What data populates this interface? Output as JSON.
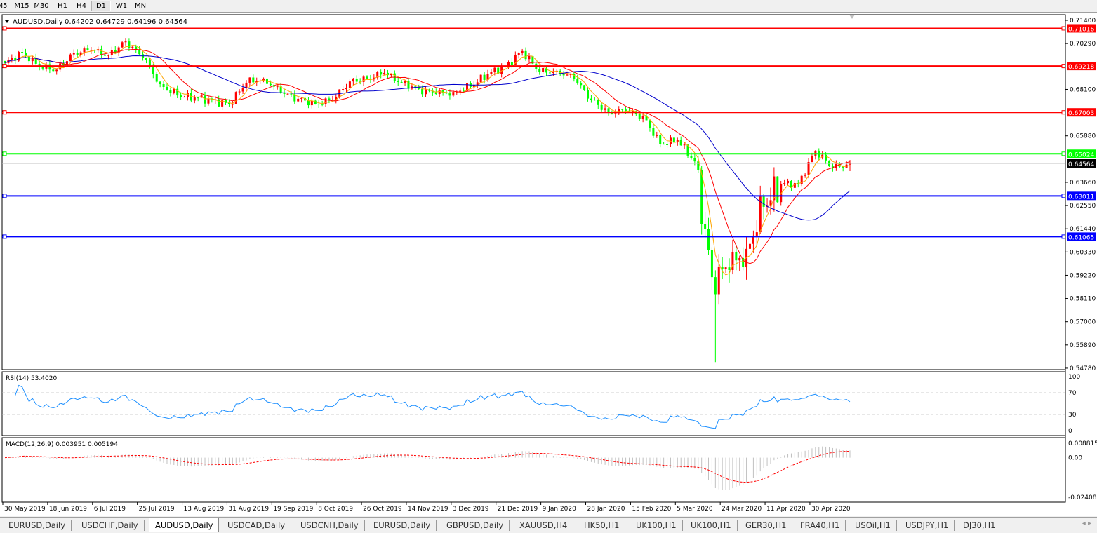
{
  "toolbar": {
    "timeframes": [
      "M5",
      "M15",
      "M30",
      "H1",
      "H4",
      "D1",
      "W1",
      "MN"
    ],
    "active_timeframe": "D1"
  },
  "chart": {
    "header": "AUDUSD,Daily",
    "ohlc": "0.64202 0.64729 0.64196 0.64564",
    "rsi_header": "RSI(14) 53.4020",
    "macd_header": "MACD(12,26,9) 0.003951 0.005194"
  },
  "chart_data": {
    "type": "candlestick",
    "symbol": "AUDUSD",
    "timeframe": "Daily",
    "last": {
      "open": 0.64202,
      "high": 0.64729,
      "low": 0.64196,
      "close": 0.64564
    },
    "weekly_closes_approx": [
      0.6936,
      0.6986,
      0.6919,
      0.6904,
      0.6985,
      0.6998,
      0.6975,
      0.7039,
      0.6962,
      0.6835,
      0.6781,
      0.6771,
      0.6758,
      0.6738,
      0.6842,
      0.6862,
      0.6795,
      0.6765,
      0.6741,
      0.6761,
      0.6848,
      0.6862,
      0.6889,
      0.6842,
      0.6812,
      0.6788,
      0.6798,
      0.6822,
      0.6885,
      0.6919,
      0.6993,
      0.6892,
      0.6899,
      0.6862,
      0.6761,
      0.6701,
      0.6708,
      0.6681,
      0.655,
      0.6567,
      0.6466,
      0.5913,
      0.5947,
      0.6048,
      0.6249,
      0.6359,
      0.6359,
      0.6517,
      0.6433,
      0.64564
    ],
    "period_low_approx": 0.5507,
    "moving_averages": [
      {
        "color": "#ffa500"
      },
      {
        "color": "#ff0000"
      },
      {
        "color": "#0000cc"
      }
    ],
    "candle_colors": {
      "up": "#ff0000",
      "down": "#00ff00"
    },
    "price_axis_ticks": [
      "0.71400",
      "0.70290",
      "0.68100",
      "0.65880",
      "0.63660",
      "0.62550",
      "0.61440",
      "0.60330",
      "0.59220",
      "0.58110",
      "0.57000",
      "0.55890",
      "0.54780"
    ],
    "ylim": [
      0.5478,
      0.714
    ],
    "horizontal_lines": [
      {
        "price": "0.71016",
        "color": "#ff0000"
      },
      {
        "price": "0.69218",
        "color": "#ff0000"
      },
      {
        "price": "0.67003",
        "color": "#ff0000"
      },
      {
        "price": "0.65024",
        "color": "#00ff00"
      },
      {
        "price": "0.63011",
        "color": "#0000ff"
      },
      {
        "price": "0.61065",
        "color": "#0000ff"
      }
    ],
    "current_price": {
      "price": "0.64564",
      "color": "#000000"
    },
    "date_ticks": [
      "30 May 2019",
      "18 Jun 2019",
      "6 Jul 2019",
      "25 Jul 2019",
      "13 Aug 2019",
      "31 Aug 2019",
      "19 Sep 2019",
      "8 Oct 2019",
      "26 Oct 2019",
      "14 Nov 2019",
      "3 Dec 2019",
      "21 Dec 2019",
      "9 Jan 2020",
      "28 Jan 2020",
      "15 Feb 2020",
      "5 Mar 2020",
      "24 Mar 2020",
      "11 Apr 2020",
      "30 Apr 2020"
    ],
    "rsi": {
      "period": 14,
      "value": 53.402,
      "levels": [
        "100",
        "70",
        "30",
        "0"
      ],
      "color": "#1e90ff"
    },
    "macd": {
      "params": "12,26,9",
      "main": 0.003951,
      "signal": 0.005194,
      "axis_ticks": [
        "0.008815",
        "0.00",
        "-0.024082"
      ],
      "signal_color": "#ff0000",
      "histogram_color": "#c0c0c0"
    }
  },
  "tabs": [
    "EURUSD,Daily",
    "USDCHF,Daily",
    "AUDUSD,Daily",
    "USDCAD,Daily",
    "USDCNH,Daily",
    "EURUSD,Daily",
    "GBPUSD,Daily",
    "XAUUSD,H4",
    "HK50,H1",
    "UK100,H1",
    "UK100,H1",
    "GER30,H1",
    "FRA40,H1",
    "USOil,H1",
    "USDJPY,H1",
    "DJ30,H1"
  ],
  "active_tab": "AUDUSD,Daily"
}
